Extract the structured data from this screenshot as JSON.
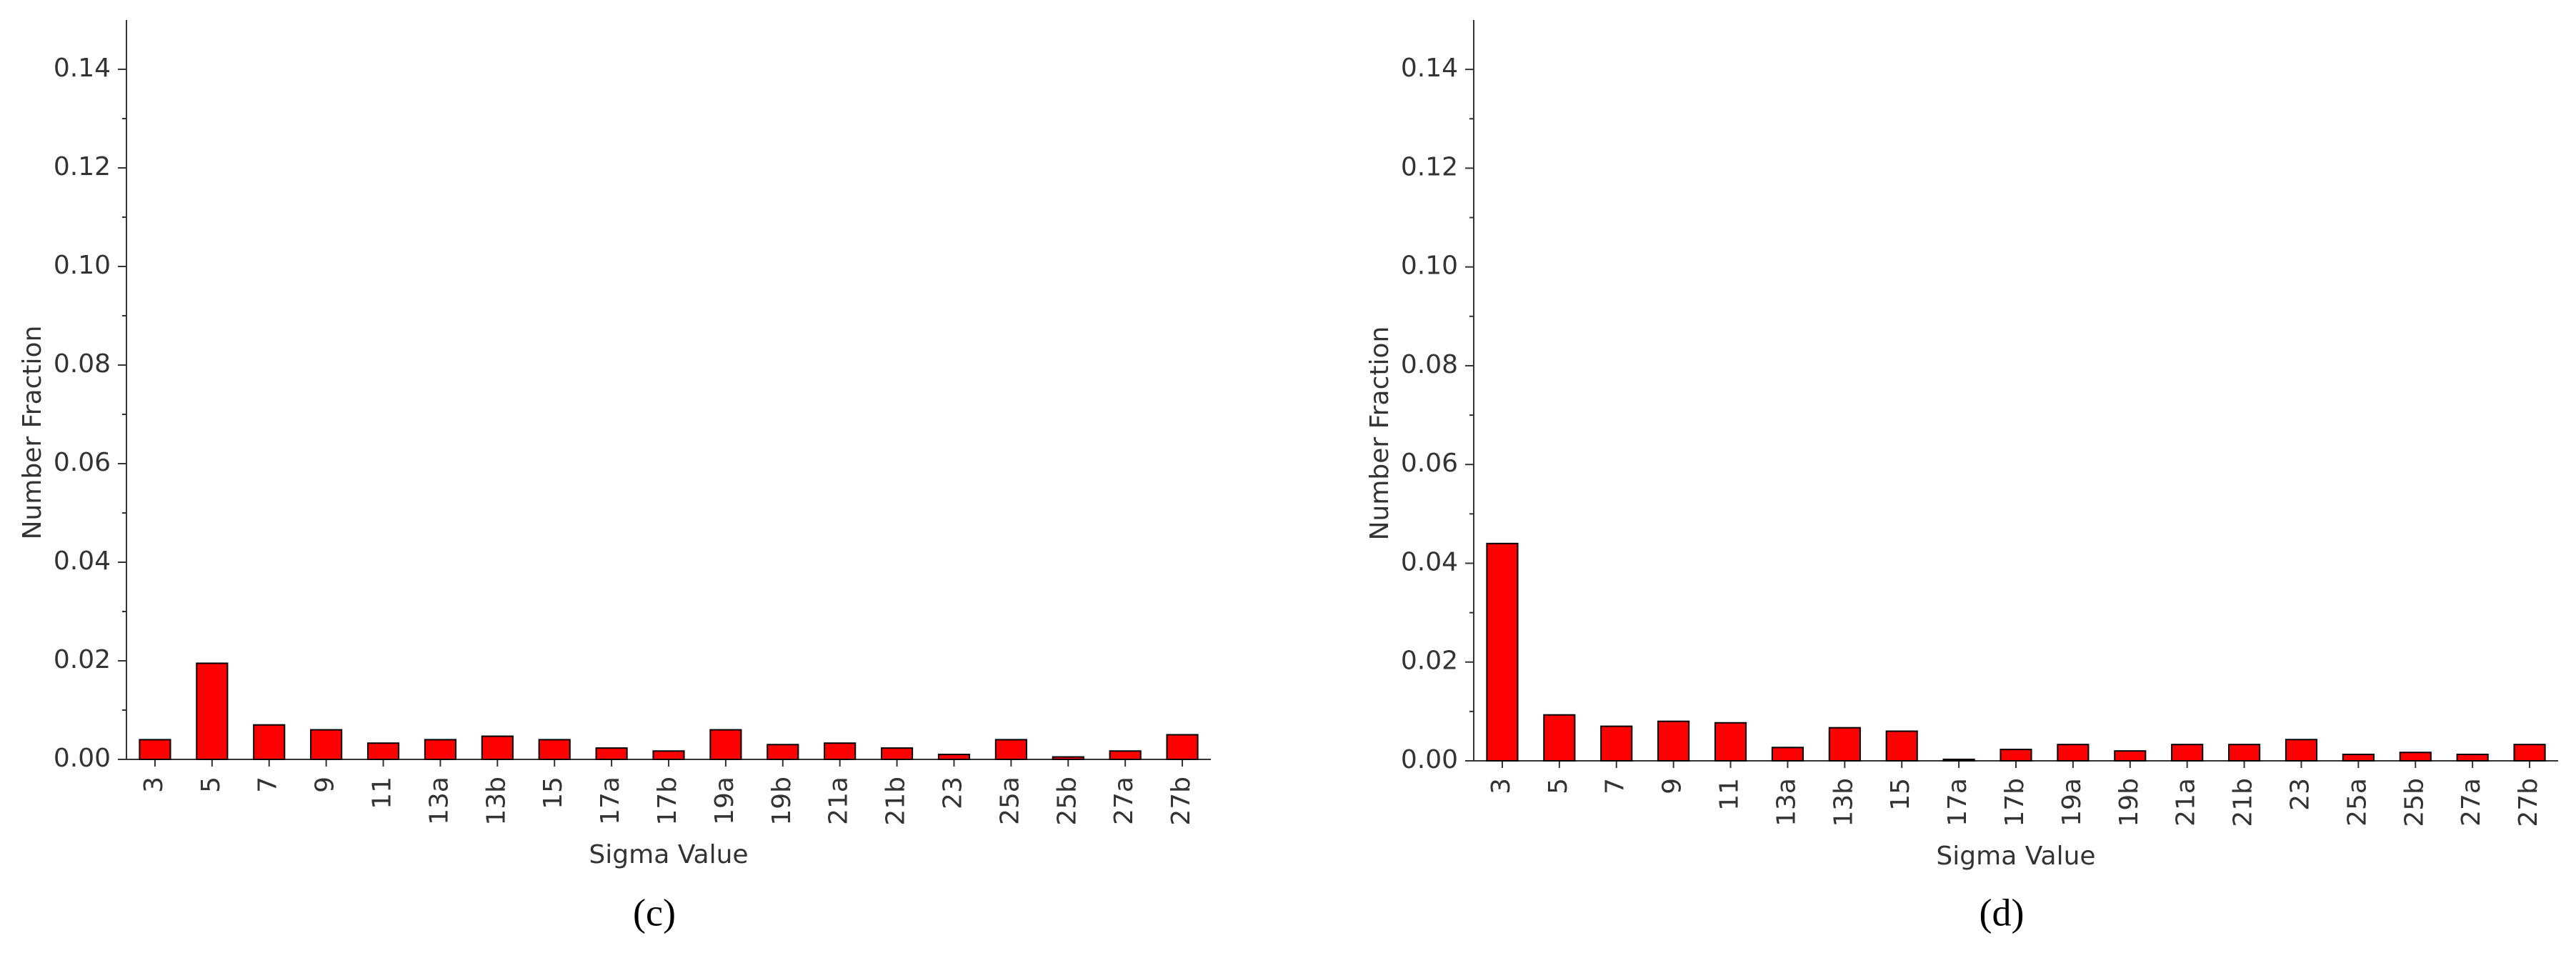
{
  "chart_data": [
    {
      "type": "bar",
      "caption": "(c)",
      "x_label": "Sigma Value",
      "y_label": "Number Fraction",
      "color": "#ff0000",
      "categories": [
        "3",
        "5",
        "7",
        "9",
        "11",
        "13a",
        "13b",
        "15",
        "17a",
        "17b",
        "19a",
        "19b",
        "21a",
        "21b",
        "23",
        "25a",
        "25b",
        "27a",
        "27b"
      ],
      "values": [
        0.004,
        0.0195,
        0.007,
        0.006,
        0.0033,
        0.004,
        0.0047,
        0.004,
        0.0023,
        0.0017,
        0.006,
        0.003,
        0.0033,
        0.0023,
        0.001,
        0.004,
        0.0005,
        0.0017,
        0.005
      ],
      "ylim": [
        0,
        0.15
      ],
      "yticks": [
        {
          "value": 0,
          "label": "0.00"
        },
        0.02,
        0.04,
        0.06,
        0.08,
        {
          "value": 0.1,
          "label": "0.10"
        },
        0.12,
        0.14
      ]
    },
    {
      "type": "bar",
      "caption": "(d)",
      "x_label": "Sigma Value",
      "y_label": "Number Fraction",
      "color": "#ff0000",
      "categories": [
        "3",
        "5",
        "7",
        "9",
        "11",
        "13a",
        "13b",
        "15",
        "17a",
        "17b",
        "19a",
        "19b",
        "21a",
        "21b",
        "23",
        "25a",
        "25b",
        "27a",
        "27b"
      ],
      "values": [
        0.044,
        0.0093,
        0.007,
        0.008,
        0.0077,
        0.0027,
        0.0067,
        0.006,
        0.0003,
        0.0023,
        0.0033,
        0.002,
        0.0033,
        0.0033,
        0.0043,
        0.0013,
        0.0017,
        0.0013,
        0.0033
      ],
      "ylim": [
        0,
        0.15
      ],
      "yticks": [
        {
          "value": 0,
          "label": "0.00"
        },
        0.02,
        0.04,
        0.06,
        0.08,
        {
          "value": 0.1,
          "label": "0.10"
        },
        0.12,
        0.14
      ]
    }
  ]
}
